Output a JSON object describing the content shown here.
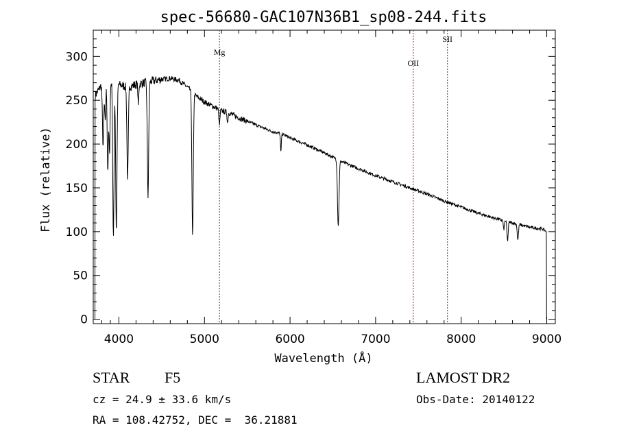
{
  "chart_data": {
    "type": "line",
    "title": "spec-56680-GAC107N36B1_sp08-244.fits",
    "xlabel": "Wavelength (Å)",
    "ylabel": "Flux (relative)",
    "xlim": [
      3700,
      9100
    ],
    "ylim": [
      -5,
      330
    ],
    "xticks": [
      4000,
      5000,
      6000,
      7000,
      8000,
      9000
    ],
    "yticks": [
      0,
      50,
      100,
      150,
      200,
      250,
      300
    ],
    "grid": false,
    "line_color": "#000000",
    "marker_color": "#8b1a1a",
    "lines": [
      {
        "label": "Mg",
        "wavelength": 5175
      },
      {
        "label": "OII",
        "wavelength": 7440
      },
      {
        "label": "SII",
        "wavelength": 7840
      }
    ],
    "continuum": [
      [
        3720,
        255
      ],
      [
        3800,
        268
      ],
      [
        3900,
        270
      ],
      [
        4000,
        268
      ],
      [
        4100,
        265
      ],
      [
        4200,
        268
      ],
      [
        4300,
        270
      ],
      [
        4400,
        272
      ],
      [
        4500,
        274
      ],
      [
        4600,
        275
      ],
      [
        4700,
        273
      ],
      [
        4800,
        265
      ],
      [
        4900,
        255
      ],
      [
        5000,
        248
      ],
      [
        5100,
        243
      ],
      [
        5200,
        238
      ],
      [
        5300,
        235
      ],
      [
        5400,
        230
      ],
      [
        5500,
        226
      ],
      [
        5600,
        222
      ],
      [
        5700,
        218
      ],
      [
        5800,
        214
      ],
      [
        5900,
        212
      ],
      [
        6000,
        207
      ],
      [
        6200,
        199
      ],
      [
        6400,
        190
      ],
      [
        6600,
        180
      ],
      [
        6800,
        172
      ],
      [
        7000,
        164
      ],
      [
        7200,
        157
      ],
      [
        7400,
        150
      ],
      [
        7600,
        143
      ],
      [
        7800,
        135
      ],
      [
        8000,
        128
      ],
      [
        8200,
        121
      ],
      [
        8400,
        115
      ],
      [
        8600,
        110
      ],
      [
        8800,
        105
      ],
      [
        8950,
        103
      ],
      [
        8990,
        101
      ]
    ],
    "absorption": [
      {
        "center": 3815,
        "depth": 70,
        "width": 8
      },
      {
        "center": 3840,
        "depth": 45,
        "width": 6
      },
      {
        "center": 3870,
        "depth": 100,
        "width": 7
      },
      {
        "center": 3890,
        "depth": 80,
        "width": 6
      },
      {
        "center": 3935,
        "depth": 180,
        "width": 7
      },
      {
        "center": 3970,
        "depth": 170,
        "width": 8
      },
      {
        "center": 4102,
        "depth": 105,
        "width": 8
      },
      {
        "center": 4227,
        "depth": 25,
        "width": 5
      },
      {
        "center": 4340,
        "depth": 130,
        "width": 8
      },
      {
        "center": 4861,
        "depth": 165,
        "width": 8
      },
      {
        "center": 5175,
        "depth": 18,
        "width": 6
      },
      {
        "center": 5270,
        "depth": 12,
        "width": 5
      },
      {
        "center": 5893,
        "depth": 22,
        "width": 5
      },
      {
        "center": 6563,
        "depth": 75,
        "width": 9
      },
      {
        "center": 8498,
        "depth": 10,
        "width": 6
      },
      {
        "center": 8542,
        "depth": 22,
        "width": 7
      },
      {
        "center": 8662,
        "depth": 18,
        "width": 7
      }
    ]
  },
  "info": {
    "object_class": "STAR",
    "subclass": "F5",
    "survey": "LAMOST DR2",
    "redshift": "cz = 24.9 ± 33.6 km/s",
    "obs_date": "Obs-Date: 20140122",
    "coords": "RA = 108.42752, DEC =  36.21881"
  }
}
